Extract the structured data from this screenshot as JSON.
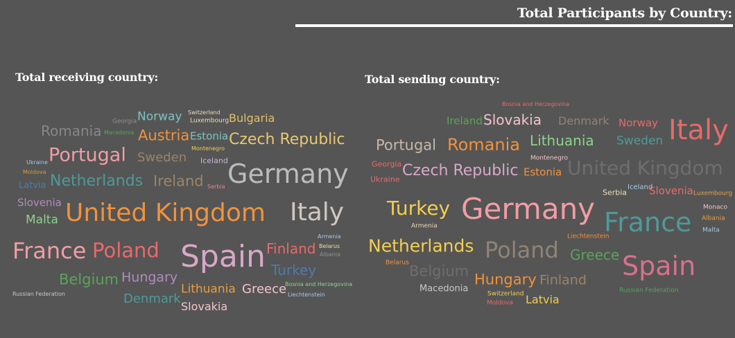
{
  "title": "Total Participants by Country:",
  "receiving": {
    "title": "Total receiving country:",
    "words": [
      {
        "text": "Georgia",
        "color": "#8f8f8f"
      },
      {
        "text": "Norway",
        "color": "#7ac4c4"
      },
      {
        "text": "Switzerland",
        "color": "#f0ddb6"
      },
      {
        "text": "Luxembourg",
        "color": "#f0ddb6"
      },
      {
        "text": "Bulgaria",
        "color": "#e0c066"
      },
      {
        "text": "Romania",
        "color": "#878787"
      },
      {
        "text": "Macedonia",
        "color": "#5aa35a"
      },
      {
        "text": "Austria",
        "color": "#f0923c"
      },
      {
        "text": "Estonia",
        "color": "#7ac4c4"
      },
      {
        "text": "Czech Republic",
        "color": "#e8c872"
      },
      {
        "text": "Montenegro",
        "color": "#f3cf4f"
      },
      {
        "text": "Portugal",
        "color": "#f29da5"
      },
      {
        "text": "Sweden",
        "color": "#9c8468"
      },
      {
        "text": "Iceland",
        "color": "#c8b4d8"
      },
      {
        "text": "Ukraine",
        "color": "#a9c8e8"
      },
      {
        "text": "Moldova",
        "color": "#d89a3c"
      },
      {
        "text": "Germany",
        "color": "#bcbcbc"
      },
      {
        "text": "Netherlands",
        "color": "#4e9a9a"
      },
      {
        "text": "Ireland",
        "color": "#9c8468"
      },
      {
        "text": "Serbia",
        "color": "#e8849a"
      },
      {
        "text": "Latvia",
        "color": "#4e7aaa"
      },
      {
        "text": "Slovenia",
        "color": "#b08cbc"
      },
      {
        "text": "United Kingdom",
        "color": "#f0923c"
      },
      {
        "text": "Italy",
        "color": "#d0c8c0"
      },
      {
        "text": "Malta",
        "color": "#8bd48b"
      },
      {
        "text": "Armenia",
        "color": "#a9c8e8"
      },
      {
        "text": "France",
        "color": "#f29da5"
      },
      {
        "text": "Poland",
        "color": "#e86a6a"
      },
      {
        "text": "Spain",
        "color": "#d8a8c8"
      },
      {
        "text": "Finland",
        "color": "#e86a6a"
      },
      {
        "text": "Belarus",
        "color": "#f0ddb6"
      },
      {
        "text": "Albania",
        "color": "#8f8f8f"
      },
      {
        "text": "Turkey",
        "color": "#4e7aaa"
      },
      {
        "text": "Belgium",
        "color": "#5aa35a"
      },
      {
        "text": "Hungary",
        "color": "#b08cbc"
      },
      {
        "text": "Lithuania",
        "color": "#e8a040"
      },
      {
        "text": "Greece",
        "color": "#f3c4cc"
      },
      {
        "text": "Bosnia and Herzegovina",
        "color": "#8bd48b"
      },
      {
        "text": "Liechtenstein",
        "color": "#a9c8e8"
      },
      {
        "text": "Russian Federation",
        "color": "#c8c8c8"
      },
      {
        "text": "Denmark",
        "color": "#4e9a9a"
      },
      {
        "text": "Slovakia",
        "color": "#f3c4cc"
      }
    ]
  },
  "sending": {
    "title": "Total sending country:",
    "words": [
      {
        "text": "Bosnia and Herzegovina",
        "color": "#e86a6a"
      },
      {
        "text": "Ireland",
        "color": "#5aa35a"
      },
      {
        "text": "Slovakia",
        "color": "#f3c4cc"
      },
      {
        "text": "Denmark",
        "color": "#8f8474"
      },
      {
        "text": "Norway",
        "color": "#e86a6a"
      },
      {
        "text": "Italy",
        "color": "#e86a6a"
      },
      {
        "text": "Portugal",
        "color": "#c8b8a8"
      },
      {
        "text": "Romania",
        "color": "#f0923c"
      },
      {
        "text": "Lithuania",
        "color": "#8bd48b"
      },
      {
        "text": "Sweden",
        "color": "#4e9a9a"
      },
      {
        "text": "Georgia",
        "color": "#e86a6a"
      },
      {
        "text": "Montenegro",
        "color": "#f3c4cc"
      },
      {
        "text": "Czech Republic",
        "color": "#d8a8c8"
      },
      {
        "text": "Estonia",
        "color": "#f0923c"
      },
      {
        "text": "United Kingdom",
        "color": "#6e6e6e"
      },
      {
        "text": "Ukraine",
        "color": "#e86a6a"
      },
      {
        "text": "Serbia",
        "color": "#f0ddb6"
      },
      {
        "text": "Iceland",
        "color": "#a9c8e8"
      },
      {
        "text": "Slovenia",
        "color": "#e86a6a"
      },
      {
        "text": "Luxembourg",
        "color": "#e8a040"
      },
      {
        "text": "Turkey",
        "color": "#f3cf4f"
      },
      {
        "text": "Germany",
        "color": "#f29da5"
      },
      {
        "text": "Monaco",
        "color": "#f3c4cc"
      },
      {
        "text": "Albania",
        "color": "#e8a040"
      },
      {
        "text": "France",
        "color": "#4e9a9a"
      },
      {
        "text": "Armenia",
        "color": "#f0ddb6"
      },
      {
        "text": "Malta",
        "color": "#a9c8e8"
      },
      {
        "text": "Netherlands",
        "color": "#f3cf4f"
      },
      {
        "text": "Poland",
        "color": "#8f8474"
      },
      {
        "text": "Liechtenstein",
        "color": "#f0923c"
      },
      {
        "text": "Greece",
        "color": "#5aa35a"
      },
      {
        "text": "Spain",
        "color": "#d9708e"
      },
      {
        "text": "Belarus",
        "color": "#f0923c"
      },
      {
        "text": "Belgium",
        "color": "#6e6e6e"
      },
      {
        "text": "Hungary",
        "color": "#f0923c"
      },
      {
        "text": "Finland",
        "color": "#9c8468"
      },
      {
        "text": "Russian Federation",
        "color": "#5aa35a"
      },
      {
        "text": "Macedonia",
        "color": "#c8c8c8"
      },
      {
        "text": "Switzerland",
        "color": "#f3cf4f"
      },
      {
        "text": "Moldova",
        "color": "#e86a6a"
      },
      {
        "text": "Latvia",
        "color": "#f3cf4f"
      }
    ]
  }
}
